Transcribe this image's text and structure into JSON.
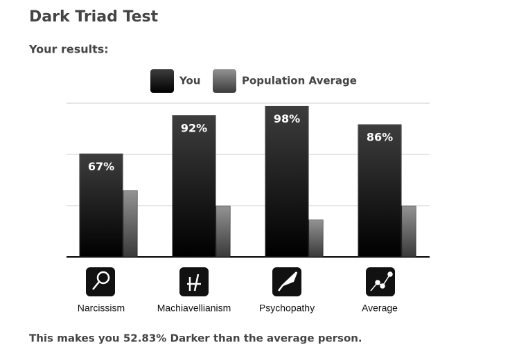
{
  "title": "Dark Triad Test",
  "subtitle": "Your results:",
  "footer": "This makes you 52.83% Darker than the average person.",
  "chart_data": {
    "type": "bar",
    "categories": [
      "Narcissism",
      "Machiavellianism",
      "Psychopathy",
      "Average"
    ],
    "series": [
      {
        "name": "You",
        "color": "#000000",
        "values": [
          67,
          92,
          98,
          86
        ],
        "value_labels": [
          "67%",
          "92%",
          "98%",
          "86%"
        ]
      },
      {
        "name": "Population Average",
        "color": "#3a3a3a",
        "values": [
          43,
          33,
          24,
          33
        ]
      }
    ],
    "ylim": [
      0,
      100
    ],
    "yticks": [
      0,
      33.33,
      66.67,
      100
    ],
    "grid": true
  }
}
